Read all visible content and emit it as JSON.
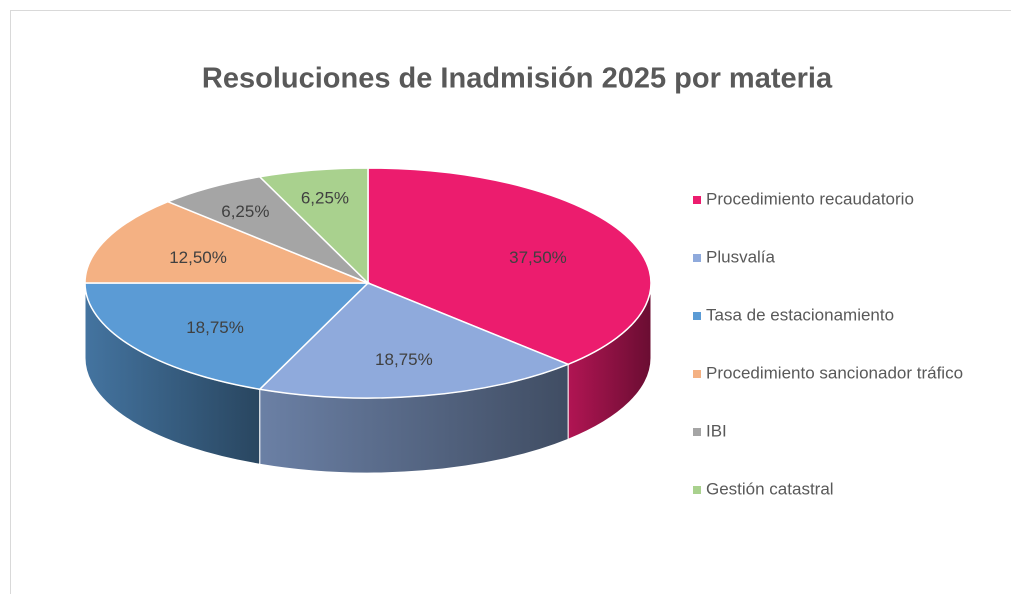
{
  "chart_data": {
    "type": "pie",
    "title": "Resoluciones de Inadmisión 2025 por materia",
    "categories": [
      "Procedimiento recaudatorio",
      "Plusvalía",
      "Tasa de estacionamiento",
      "Procedimiento sancionador tráfico",
      "IBI",
      "Gestión catastral"
    ],
    "values": [
      37.5,
      18.75,
      18.75,
      12.5,
      6.25,
      6.25
    ],
    "value_labels": [
      "37,50%",
      "18,75%",
      "18,75%",
      "12,50%",
      "6,25%",
      "6,25%"
    ],
    "colors": [
      "#EC1C6E",
      "#8FAADC",
      "#5B9BD5",
      "#F4B183",
      "#A5A5A5",
      "#A9D18E"
    ],
    "legend": "right"
  }
}
